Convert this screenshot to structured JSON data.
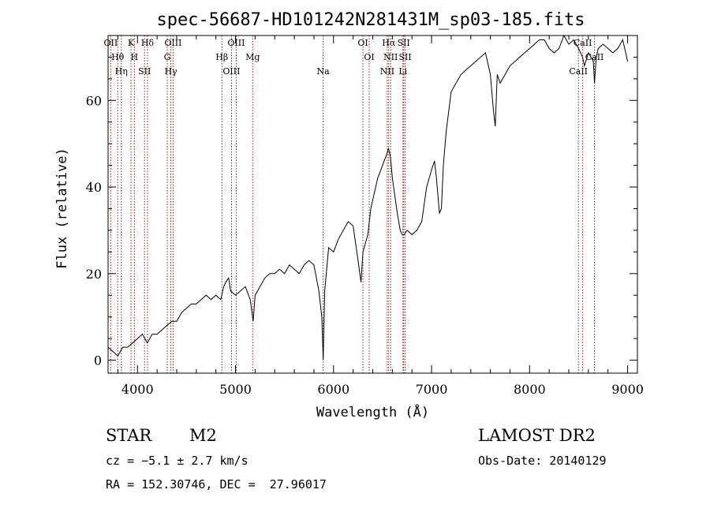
{
  "chart_data": {
    "type": "line",
    "title": "spec-56687-HD101242N281431M_sp03-185.fits",
    "xlabel": "Wavelength (Å)",
    "ylabel": "Flux (relative)",
    "xlim": [
      3700,
      9100
    ],
    "ylim": [
      -3,
      75
    ],
    "x_ticks": [
      4000,
      5000,
      6000,
      7000,
      8000,
      9000
    ],
    "y_ticks": [
      0,
      20,
      40,
      60
    ],
    "grid": false,
    "series": [
      {
        "color": "#000000",
        "x": [
          3700,
          3750,
          3800,
          3850,
          3900,
          3950,
          4000,
          4050,
          4100,
          4150,
          4200,
          4250,
          4300,
          4350,
          4400,
          4450,
          4500,
          4550,
          4600,
          4650,
          4700,
          4750,
          4800,
          4850,
          4880,
          4900,
          4930,
          4950,
          5000,
          5050,
          5100,
          5150,
          5180,
          5200,
          5250,
          5300,
          5350,
          5400,
          5450,
          5500,
          5550,
          5600,
          5650,
          5700,
          5750,
          5800,
          5850,
          5880,
          5895,
          5910,
          5930,
          5950,
          6000,
          6050,
          6100,
          6150,
          6200,
          6250,
          6280,
          6300,
          6350,
          6380,
          6400,
          6450,
          6500,
          6550,
          6560,
          6580,
          6600,
          6650,
          6680,
          6700,
          6720,
          6750,
          6800,
          6850,
          6900,
          6950,
          7000,
          7030,
          7050,
          7080,
          7100,
          7120,
          7150,
          7200,
          7250,
          7300,
          7350,
          7400,
          7450,
          7500,
          7550,
          7600,
          7630,
          7650,
          7670,
          7700,
          7750,
          7800,
          7850,
          7900,
          7950,
          8000,
          8050,
          8100,
          8150,
          8200,
          8250,
          8300,
          8350,
          8400,
          8450,
          8500,
          8540,
          8560,
          8600,
          8650,
          8662,
          8680,
          8700,
          8750,
          8800,
          8850,
          8900,
          8950,
          9000
        ],
        "y": [
          3,
          2,
          1,
          3,
          3,
          4,
          5,
          6,
          4,
          6,
          6,
          7,
          8,
          9,
          9,
          11,
          12,
          13,
          13,
          14,
          15,
          14,
          15,
          14,
          17,
          18,
          19,
          16,
          15,
          16,
          17,
          14,
          9,
          15,
          17,
          19,
          20,
          20,
          21,
          20,
          22,
          21,
          20,
          22,
          23,
          22,
          16,
          10,
          0,
          16,
          21,
          26,
          25,
          28,
          30,
          32,
          31,
          23,
          18,
          25,
          29,
          35,
          37,
          42,
          45,
          48,
          49,
          47,
          42,
          34,
          30,
          29,
          29,
          30,
          29,
          30,
          32,
          40,
          44,
          46,
          42,
          34,
          35,
          45,
          53,
          62,
          64,
          66,
          67,
          68,
          69,
          70,
          71,
          66,
          58,
          54,
          66,
          64,
          66,
          68,
          69,
          70,
          71,
          72,
          73,
          74,
          74,
          72,
          71,
          72,
          75,
          73,
          74,
          72,
          70,
          68,
          71,
          69,
          64,
          70,
          72,
          73,
          72,
          71,
          72,
          74,
          69
        ]
      }
    ],
    "spectral_lines": [
      {
        "label": "OII",
        "x": 3727
      },
      {
        "label": "Hθ",
        "x": 3798
      },
      {
        "label": "Hη",
        "x": 3835
      },
      {
        "label": "K",
        "x": 3934
      },
      {
        "label": "H",
        "x": 3968
      },
      {
        "label": "SII",
        "x": 4072
      },
      {
        "label": "Hδ",
        "x": 4102
      },
      {
        "label": "G",
        "x": 4304
      },
      {
        "label": "Hγ",
        "x": 4340
      },
      {
        "label": "OIII",
        "x": 4363
      },
      {
        "label": "Hβ",
        "x": 4861
      },
      {
        "label": "OIII",
        "x": 4959
      },
      {
        "label": "OIII",
        "x": 5007
      },
      {
        "label": "Mg",
        "x": 5175
      },
      {
        "label": "Na",
        "x": 5894
      },
      {
        "label": "OI",
        "x": 6300
      },
      {
        "label": "OI",
        "x": 6364
      },
      {
        "label": "NII",
        "x": 6548
      },
      {
        "label": "Hα",
        "x": 6563
      },
      {
        "label": "NII",
        "x": 6583
      },
      {
        "label": "Li",
        "x": 6708
      },
      {
        "label": "SII",
        "x": 6716
      },
      {
        "label": "SII",
        "x": 6731
      },
      {
        "label": "CaII",
        "x": 8498
      },
      {
        "label": "CaII",
        "x": 8542
      },
      {
        "label": "CaII",
        "x": 8662
      }
    ]
  },
  "info": {
    "class": "STAR",
    "subclass": "M2",
    "survey": "LAMOST DR2",
    "cz": "cz = −5.1 ± 2.7 km/s",
    "obs_date": "Obs-Date: 20140129",
    "coords": "RA = 152.30746, DEC =  27.96017"
  }
}
